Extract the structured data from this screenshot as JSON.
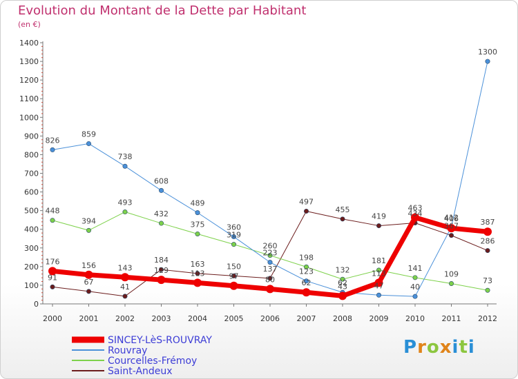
{
  "title": "Evolution du Montant de la Dette par Habitant",
  "subtitle": "(en €)",
  "logo": "Proxiti",
  "chart_data": {
    "type": "line",
    "x": [
      "2000",
      "2001",
      "2002",
      "2003",
      "2004",
      "2005",
      "2006",
      "2007",
      "2008",
      "2009",
      "2010",
      "2011",
      "2012"
    ],
    "ylim": [
      0,
      1400
    ],
    "yticks": [
      0,
      100,
      200,
      300,
      400,
      500,
      600,
      700,
      800,
      900,
      1000,
      1100,
      1200,
      1300,
      1400
    ],
    "grid": false,
    "legend_position": "bottom-left",
    "series": [
      {
        "name": "Saint-Andeux",
        "color": "#6b1c1c",
        "width": 1,
        "radius": 3.2,
        "values": [
          91,
          67,
          41,
          184,
          163,
          150,
          137,
          497,
          455,
          419,
          434,
          367,
          286
        ],
        "labels": [
          "91",
          "67",
          "41",
          "184",
          "163",
          "150",
          "137",
          "497",
          "455",
          "419",
          "434",
          "367",
          "286"
        ]
      },
      {
        "name": "Courcelles-Frémoy",
        "color": "#7dd14a",
        "width": 1,
        "radius": 3.2,
        "values": [
          448,
          394,
          493,
          432,
          375,
          319,
          260,
          198,
          132,
          181,
          141,
          109,
          73
        ],
        "labels": [
          "448",
          "394",
          "493",
          "432",
          "375",
          "319",
          "260",
          "198",
          "132",
          "181",
          "141",
          "109",
          "73"
        ]
      },
      {
        "name": "Rouvray",
        "color": "#4a90d9",
        "width": 1,
        "radius": 3.2,
        "values": [
          826,
          859,
          738,
          608,
          489,
          360,
          223,
          123,
          62,
          47,
          40,
          412,
          1300
        ],
        "labels": [
          "826",
          "859",
          "738",
          "608",
          "489",
          "360",
          "223",
          "123",
          "62",
          "47",
          "40",
          "412",
          "1300"
        ]
      },
      {
        "name": "SINCEY-LèS-ROUVRAY",
        "color": "#ee0000",
        "width": 7,
        "radius": 6,
        "values": [
          176,
          156,
          143,
          129,
          113,
          97,
          80,
          62,
          43,
          113,
          463,
          406,
          387
        ],
        "labels": [
          "176",
          "156",
          "143",
          "129",
          "113",
          "97",
          "80",
          "62",
          "43",
          "113",
          "463",
          "406",
          "387"
        ]
      }
    ],
    "legend": [
      "SINCEY-LèS-ROUVRAY",
      "Rouvray",
      "Courcelles-Frémoy",
      "Saint-Andeux"
    ]
  }
}
